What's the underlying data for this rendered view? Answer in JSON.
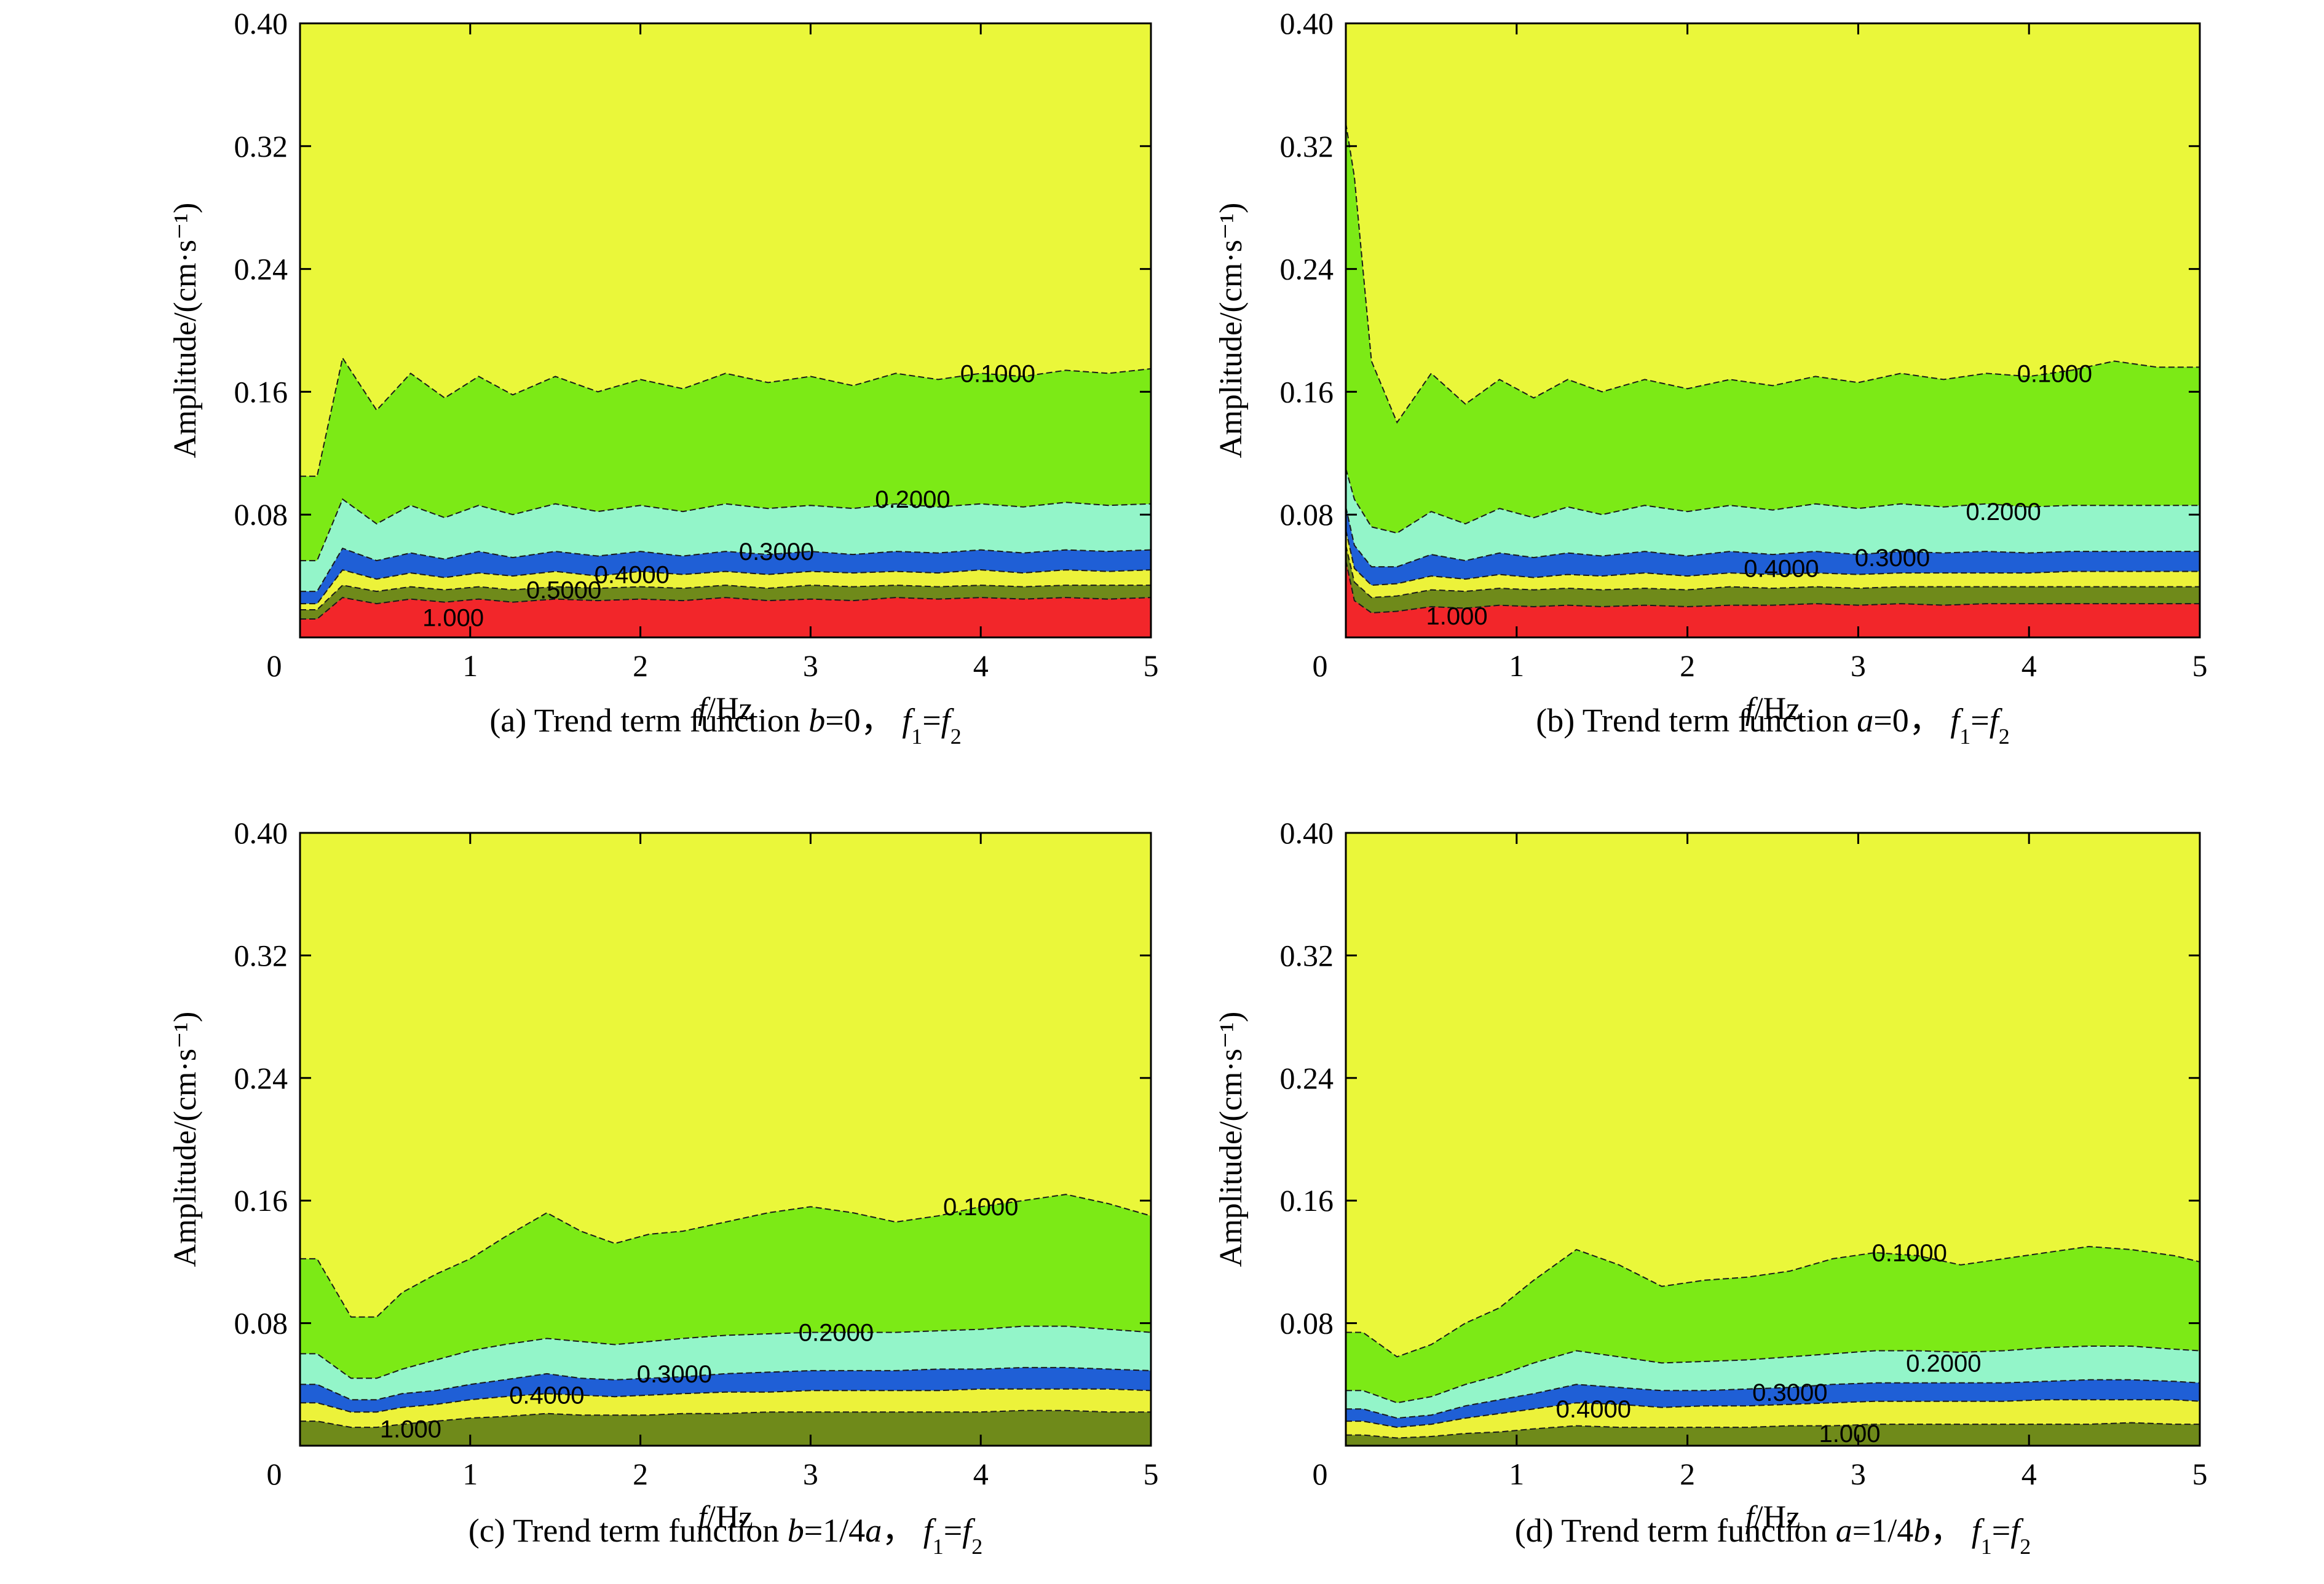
{
  "colors": {
    "background_level": "#eaf73a",
    "level_0_1": "#7cea16",
    "level_0_2": "#93f5c9",
    "level_0_3": "#1f5fd6",
    "level_0_4": "#ecf23a",
    "level_0_5": "#6f8a1a",
    "level_1_0": "#f2262a"
  },
  "chart_data": [
    {
      "type": "contour",
      "caption": {
        "prefix": "(a) Trend term function ",
        "condition": "b=0",
        "sep": "， ",
        "eq": "f1=f2"
      },
      "xlabel": "f/Hz",
      "ylabel": "Amplitude/(cm·s⁻¹)",
      "xlim": [
        0,
        5
      ],
      "ylim": [
        0,
        0.4
      ],
      "x_ticks": [
        "0",
        "1",
        "2",
        "3",
        "4",
        "5"
      ],
      "y_ticks": [
        "0.40",
        "0.32",
        "0.24",
        "0.16",
        "0.08"
      ],
      "x": [
        0.1,
        0.25,
        0.45,
        0.65,
        0.85,
        1.05,
        1.25,
        1.5,
        1.75,
        2.0,
        2.25,
        2.5,
        2.75,
        3.0,
        3.25,
        3.5,
        3.75,
        4.0,
        4.25,
        4.5,
        4.75,
        5.0
      ],
      "levels": [
        {
          "label": "0.1000",
          "values": [
            0.105,
            0.182,
            0.148,
            0.172,
            0.156,
            0.17,
            0.158,
            0.17,
            0.16,
            0.168,
            0.162,
            0.172,
            0.166,
            0.17,
            0.164,
            0.172,
            0.168,
            0.172,
            0.17,
            0.174,
            0.172,
            0.175
          ]
        },
        {
          "label": "0.2000",
          "values": [
            0.05,
            0.09,
            0.074,
            0.086,
            0.078,
            0.086,
            0.08,
            0.087,
            0.082,
            0.086,
            0.082,
            0.087,
            0.084,
            0.086,
            0.084,
            0.087,
            0.085,
            0.087,
            0.085,
            0.088,
            0.086,
            0.087
          ]
        },
        {
          "label": "0.3000",
          "values": [
            0.03,
            0.058,
            0.05,
            0.055,
            0.051,
            0.056,
            0.052,
            0.056,
            0.053,
            0.056,
            0.053,
            0.056,
            0.054,
            0.056,
            0.054,
            0.056,
            0.055,
            0.057,
            0.055,
            0.057,
            0.056,
            0.057
          ]
        },
        {
          "label": "0.4000",
          "values": [
            0.022,
            0.044,
            0.038,
            0.042,
            0.039,
            0.042,
            0.04,
            0.043,
            0.04,
            0.043,
            0.041,
            0.043,
            0.041,
            0.043,
            0.042,
            0.043,
            0.042,
            0.044,
            0.042,
            0.044,
            0.043,
            0.044
          ]
        },
        {
          "label": "0.5000",
          "values": [
            0.018,
            0.034,
            0.03,
            0.033,
            0.031,
            0.033,
            0.031,
            0.033,
            0.032,
            0.033,
            0.032,
            0.034,
            0.032,
            0.034,
            0.033,
            0.034,
            0.033,
            0.034,
            0.033,
            0.034,
            0.034,
            0.034
          ]
        },
        {
          "label": "1.000",
          "values": [
            0.012,
            0.026,
            0.022,
            0.025,
            0.023,
            0.025,
            0.023,
            0.025,
            0.024,
            0.025,
            0.024,
            0.026,
            0.024,
            0.025,
            0.024,
            0.026,
            0.025,
            0.026,
            0.025,
            0.026,
            0.025,
            0.026
          ]
        }
      ],
      "contour_labels": [
        {
          "text": "0.1000",
          "x": 4.1,
          "y": 0.172
        },
        {
          "text": "0.2000",
          "x": 3.6,
          "y": 0.09
        },
        {
          "text": "0.3000",
          "x": 2.8,
          "y": 0.056
        },
        {
          "text": "0.4000",
          "x": 1.95,
          "y": 0.041
        },
        {
          "text": "0.5000",
          "x": 1.55,
          "y": 0.031
        },
        {
          "text": "1.000",
          "x": 0.9,
          "y": 0.013
        }
      ]
    },
    {
      "type": "contour",
      "caption": {
        "prefix": "(b) Trend term function ",
        "condition": "a=0",
        "sep": "， ",
        "eq": "f1=f2"
      },
      "xlabel": "f/Hz",
      "ylabel": "Amplitude/(cm·s⁻¹)",
      "xlim": [
        0,
        5
      ],
      "ylim": [
        0,
        0.4
      ],
      "x_ticks": [
        "0",
        "1",
        "2",
        "3",
        "4",
        "5"
      ],
      "y_ticks": [
        "0.40",
        "0.32",
        "0.24",
        "0.16",
        "0.08"
      ],
      "x": [
        0.0,
        0.05,
        0.15,
        0.3,
        0.5,
        0.7,
        0.9,
        1.1,
        1.3,
        1.5,
        1.75,
        2.0,
        2.25,
        2.5,
        2.75,
        3.0,
        3.25,
        3.5,
        3.75,
        4.0,
        4.25,
        4.5,
        4.75,
        5.0
      ],
      "levels": [
        {
          "label": "0.1000",
          "values": [
            0.335,
            0.3,
            0.18,
            0.14,
            0.172,
            0.152,
            0.168,
            0.156,
            0.168,
            0.16,
            0.168,
            0.162,
            0.168,
            0.164,
            0.17,
            0.166,
            0.172,
            0.168,
            0.172,
            0.17,
            0.174,
            0.18,
            0.176,
            0.176
          ]
        },
        {
          "label": "0.2000",
          "values": [
            0.11,
            0.09,
            0.072,
            0.068,
            0.082,
            0.074,
            0.084,
            0.078,
            0.085,
            0.08,
            0.086,
            0.082,
            0.086,
            0.083,
            0.087,
            0.084,
            0.087,
            0.085,
            0.087,
            0.085,
            0.086,
            0.086,
            0.086,
            0.086
          ]
        },
        {
          "label": "0.3000",
          "values": [
            0.085,
            0.06,
            0.046,
            0.046,
            0.054,
            0.05,
            0.055,
            0.052,
            0.055,
            0.053,
            0.056,
            0.053,
            0.056,
            0.054,
            0.056,
            0.054,
            0.056,
            0.055,
            0.056,
            0.055,
            0.056,
            0.056,
            0.056,
            0.056
          ]
        },
        {
          "label": "0.4000",
          "values": [
            0.07,
            0.045,
            0.034,
            0.035,
            0.04,
            0.038,
            0.041,
            0.039,
            0.041,
            0.04,
            0.042,
            0.04,
            0.042,
            0.041,
            0.042,
            0.041,
            0.042,
            0.042,
            0.042,
            0.042,
            0.043,
            0.043,
            0.043,
            0.043
          ]
        },
        {
          "label": "0.5000",
          "values": [
            0.06,
            0.036,
            0.026,
            0.027,
            0.031,
            0.03,
            0.032,
            0.031,
            0.032,
            0.031,
            0.032,
            0.031,
            0.033,
            0.032,
            0.033,
            0.032,
            0.033,
            0.033,
            0.033,
            0.033,
            0.033,
            0.033,
            0.033,
            0.033
          ]
        },
        {
          "label": "1.000",
          "values": [
            0.05,
            0.024,
            0.016,
            0.017,
            0.02,
            0.019,
            0.021,
            0.02,
            0.021,
            0.02,
            0.021,
            0.02,
            0.021,
            0.021,
            0.022,
            0.021,
            0.022,
            0.021,
            0.022,
            0.022,
            0.022,
            0.022,
            0.022,
            0.022
          ]
        }
      ],
      "contour_labels": [
        {
          "text": "0.1000",
          "x": 4.15,
          "y": 0.172
        },
        {
          "text": "0.2000",
          "x": 3.85,
          "y": 0.082
        },
        {
          "text": "0.3000",
          "x": 3.2,
          "y": 0.052
        },
        {
          "text": "0.4000",
          "x": 2.55,
          "y": 0.045
        },
        {
          "text": "1.000",
          "x": 0.65,
          "y": 0.014
        }
      ]
    },
    {
      "type": "contour",
      "caption": {
        "prefix": "(c) Trend term function ",
        "condition": "b=1/4a",
        "sep": "， ",
        "eq": "f1=f2"
      },
      "xlabel": "f/Hz",
      "ylabel": "Amplitude/(cm·s⁻¹)",
      "xlim": [
        0,
        5
      ],
      "ylim": [
        0,
        0.4
      ],
      "x_ticks": [
        "0",
        "1",
        "2",
        "3",
        "4",
        "5"
      ],
      "y_ticks": [
        "0.40",
        "0.32",
        "0.24",
        "0.16",
        "0.08"
      ],
      "x": [
        0.1,
        0.3,
        0.45,
        0.6,
        0.8,
        1.0,
        1.2,
        1.45,
        1.65,
        1.85,
        2.05,
        2.25,
        2.5,
        2.75,
        3.0,
        3.25,
        3.5,
        3.75,
        4.0,
        4.25,
        4.5,
        4.75,
        5.0
      ],
      "levels": [
        {
          "label": "0.1000",
          "values": [
            0.122,
            0.084,
            0.084,
            0.1,
            0.112,
            0.122,
            0.136,
            0.152,
            0.14,
            0.132,
            0.138,
            0.14,
            0.146,
            0.152,
            0.156,
            0.152,
            0.146,
            0.15,
            0.156,
            0.16,
            0.164,
            0.158,
            0.15
          ]
        },
        {
          "label": "0.2000",
          "values": [
            0.06,
            0.044,
            0.044,
            0.05,
            0.056,
            0.062,
            0.066,
            0.07,
            0.068,
            0.066,
            0.068,
            0.07,
            0.072,
            0.073,
            0.074,
            0.074,
            0.074,
            0.075,
            0.076,
            0.078,
            0.078,
            0.076,
            0.074
          ]
        },
        {
          "label": "0.3000",
          "values": [
            0.04,
            0.03,
            0.03,
            0.034,
            0.036,
            0.04,
            0.043,
            0.047,
            0.044,
            0.043,
            0.044,
            0.045,
            0.047,
            0.048,
            0.049,
            0.049,
            0.049,
            0.05,
            0.05,
            0.051,
            0.051,
            0.05,
            0.049
          ]
        },
        {
          "label": "0.4000",
          "values": [
            0.028,
            0.022,
            0.022,
            0.025,
            0.027,
            0.03,
            0.032,
            0.034,
            0.033,
            0.032,
            0.033,
            0.034,
            0.035,
            0.035,
            0.036,
            0.036,
            0.036,
            0.036,
            0.037,
            0.037,
            0.037,
            0.037,
            0.036
          ]
        },
        {
          "label": "1.000",
          "values": [
            0.016,
            0.012,
            0.012,
            0.014,
            0.016,
            0.018,
            0.019,
            0.021,
            0.02,
            0.02,
            0.02,
            0.021,
            0.021,
            0.022,
            0.022,
            0.022,
            0.022,
            0.022,
            0.022,
            0.023,
            0.023,
            0.022,
            0.022
          ]
        }
      ],
      "contour_labels": [
        {
          "text": "0.1000",
          "x": 4.0,
          "y": 0.156
        },
        {
          "text": "0.2000",
          "x": 3.15,
          "y": 0.074
        },
        {
          "text": "0.3000",
          "x": 2.2,
          "y": 0.047
        },
        {
          "text": "0.4000",
          "x": 1.45,
          "y": 0.033
        },
        {
          "text": "1.000",
          "x": 0.65,
          "y": 0.011
        }
      ]
    },
    {
      "type": "contour",
      "caption": {
        "prefix": "(d) Trend term function ",
        "condition": "a=1/4b",
        "sep": "， ",
        "eq": "f1=f2"
      },
      "xlabel": "f/Hz",
      "ylabel": "Amplitude/(cm·s⁻¹)",
      "xlim": [
        0,
        5
      ],
      "ylim": [
        0,
        0.4
      ],
      "x_ticks": [
        "0",
        "1",
        "2",
        "3",
        "4",
        "5"
      ],
      "y_ticks": [
        "0.40",
        "0.32",
        "0.24",
        "0.16",
        "0.08"
      ],
      "x": [
        0.1,
        0.3,
        0.5,
        0.7,
        0.9,
        1.1,
        1.35,
        1.6,
        1.85,
        2.1,
        2.35,
        2.6,
        2.85,
        3.1,
        3.35,
        3.6,
        3.85,
        4.1,
        4.35,
        4.6,
        4.85,
        5.0
      ],
      "levels": [
        {
          "label": "0.1000",
          "values": [
            0.074,
            0.058,
            0.066,
            0.08,
            0.09,
            0.108,
            0.128,
            0.118,
            0.104,
            0.108,
            0.11,
            0.114,
            0.122,
            0.126,
            0.124,
            0.118,
            0.122,
            0.126,
            0.13,
            0.128,
            0.124,
            0.12
          ]
        },
        {
          "label": "0.2000",
          "values": [
            0.036,
            0.028,
            0.032,
            0.04,
            0.046,
            0.054,
            0.062,
            0.058,
            0.054,
            0.055,
            0.056,
            0.058,
            0.06,
            0.062,
            0.062,
            0.061,
            0.062,
            0.064,
            0.065,
            0.065,
            0.063,
            0.062
          ]
        },
        {
          "label": "0.3000",
          "values": [
            0.024,
            0.018,
            0.02,
            0.026,
            0.03,
            0.034,
            0.04,
            0.038,
            0.036,
            0.036,
            0.037,
            0.038,
            0.04,
            0.041,
            0.041,
            0.041,
            0.041,
            0.042,
            0.043,
            0.043,
            0.042,
            0.041
          ]
        },
        {
          "label": "0.4000",
          "values": [
            0.016,
            0.012,
            0.014,
            0.018,
            0.021,
            0.024,
            0.028,
            0.027,
            0.025,
            0.026,
            0.026,
            0.027,
            0.028,
            0.029,
            0.029,
            0.029,
            0.029,
            0.03,
            0.03,
            0.03,
            0.03,
            0.029
          ]
        },
        {
          "label": "1.000",
          "values": [
            0.007,
            0.005,
            0.006,
            0.008,
            0.009,
            0.011,
            0.013,
            0.012,
            0.012,
            0.012,
            0.012,
            0.013,
            0.013,
            0.014,
            0.014,
            0.014,
            0.014,
            0.014,
            0.014,
            0.015,
            0.014,
            0.014
          ]
        }
      ],
      "contour_labels": [
        {
          "text": "0.1000",
          "x": 3.3,
          "y": 0.126
        },
        {
          "text": "0.2000",
          "x": 3.5,
          "y": 0.054
        },
        {
          "text": "0.3000",
          "x": 2.6,
          "y": 0.035
        },
        {
          "text": "0.4000",
          "x": 1.45,
          "y": 0.024
        },
        {
          "text": "1.000",
          "x": 2.95,
          "y": 0.008
        }
      ]
    }
  ]
}
